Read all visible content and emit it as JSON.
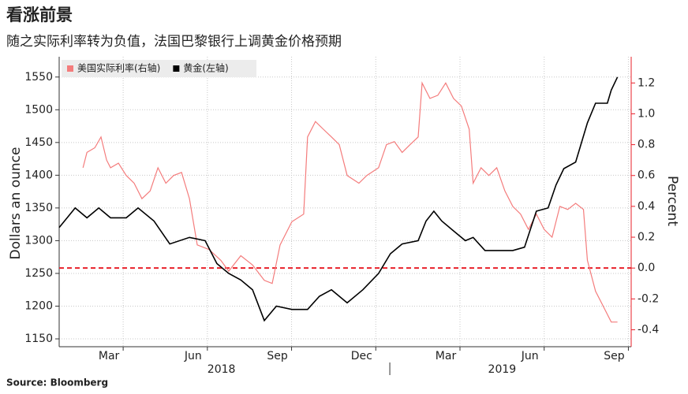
{
  "chart_data": {
    "type": "line",
    "title": "看涨前景",
    "subtitle": "随之实际利率转为负值，法国巴黎银行上调黄金价格预期",
    "source": "Source: Bloomberg",
    "ylabel": "Dollars an ounce",
    "y2label": "Percent",
    "xlim": [
      0.22,
      20.6
    ],
    "xticks": [
      {
        "value": 2.5,
        "label": "Mar"
      },
      {
        "value": 5.5,
        "label": "Jun"
      },
      {
        "value": 8.5,
        "label": "Sep"
      },
      {
        "value": 11.5,
        "label": "Dec"
      },
      {
        "value": 14.5,
        "label": "Mar"
      },
      {
        "value": 17.5,
        "label": "Jun"
      },
      {
        "value": 20.5,
        "label": "Sep"
      }
    ],
    "xgroups": [
      {
        "value": 6,
        "label": "2018"
      },
      {
        "value": 16,
        "label": "2019"
      }
    ],
    "xgroup_separator": 12,
    "ylim": [
      1138,
      1581
    ],
    "yticks": [
      1150,
      1200,
      1250,
      1300,
      1350,
      1400,
      1450,
      1500,
      1550
    ],
    "y2lim": [
      -0.51,
      1.37
    ],
    "y2ticks": [
      -0.4,
      -0.2,
      {
        "value": 0,
        "label": "0.0"
      },
      0.2,
      0.4,
      0.6,
      0.8,
      {
        "value": 1,
        "label": "1.0"
      },
      1.2
    ],
    "grid": true,
    "legend": "top-left",
    "hline": {
      "value": 0,
      "axis": "y2",
      "color": "#e8202a"
    },
    "series": [
      {
        "name": "美国实际利率(右轴)",
        "color": "#f47c7c",
        "axis": "y2",
        "x": [
          1.07,
          1.21,
          1.49,
          1.71,
          1.91,
          2.05,
          2.33,
          2.61,
          2.89,
          3.17,
          3.46,
          3.74,
          4.02,
          4.3,
          4.58,
          4.86,
          5.14,
          5.56,
          5.98,
          6.26,
          6.69,
          7.11,
          7.53,
          7.81,
          8.09,
          8.51,
          8.93,
          9.07,
          9.35,
          9.63,
          9.92,
          10.2,
          10.48,
          10.9,
          11.18,
          11.6,
          11.88,
          12.16,
          12.44,
          12.72,
          13.01,
          13.15,
          13.43,
          13.71,
          13.99,
          14.27,
          14.55,
          14.83,
          14.97,
          15.25,
          15.53,
          15.81,
          16.1,
          16.38,
          16.66,
          16.94,
          17.22,
          17.5,
          17.78,
          18.06,
          18.34,
          18.62,
          18.9,
          19.04,
          19.33,
          19.61,
          19.89,
          20.11
        ],
        "values": [
          0.65,
          0.75,
          0.78,
          0.85,
          0.7,
          0.65,
          0.68,
          0.6,
          0.55,
          0.45,
          0.5,
          0.65,
          0.55,
          0.6,
          0.62,
          0.45,
          0.15,
          0.12,
          0.05,
          -0.02,
          0.08,
          0.02,
          -0.08,
          -0.1,
          0.15,
          0.3,
          0.35,
          0.85,
          0.95,
          0.9,
          0.85,
          0.8,
          0.6,
          0.55,
          0.6,
          0.65,
          0.8,
          0.82,
          0.75,
          0.8,
          0.85,
          1.2,
          1.1,
          1.12,
          1.2,
          1.1,
          1.05,
          0.9,
          0.55,
          0.65,
          0.6,
          0.65,
          0.5,
          0.4,
          0.35,
          0.25,
          0.35,
          0.25,
          0.2,
          0.4,
          0.38,
          0.42,
          0.38,
          0.05,
          -0.15,
          -0.25,
          -0.35,
          -0.35
        ]
      },
      {
        "name": "黄金(左轴)",
        "color": "#000000",
        "x": [
          0.22,
          0.79,
          1.21,
          1.63,
          2.05,
          2.61,
          3.03,
          3.6,
          4.16,
          4.86,
          5.42,
          5.84,
          6.26,
          6.69,
          7.11,
          7.53,
          7.96,
          8.51,
          9.07,
          9.49,
          9.92,
          10.48,
          11.04,
          11.6,
          12.02,
          12.44,
          13.01,
          13.29,
          13.57,
          13.85,
          14.27,
          14.69,
          14.97,
          15.39,
          15.81,
          16.38,
          16.8,
          17.22,
          17.64,
          17.92,
          18.2,
          18.62,
          19.04,
          19.33,
          19.75,
          19.89,
          20.11
        ],
        "values": [
          1320,
          1350,
          1335,
          1350,
          1335,
          1335,
          1350,
          1330,
          1295,
          1305,
          1300,
          1265,
          1250,
          1240,
          1225,
          1178,
          1200,
          1195,
          1195,
          1215,
          1225,
          1205,
          1225,
          1250,
          1280,
          1295,
          1300,
          1330,
          1345,
          1330,
          1315,
          1300,
          1305,
          1285,
          1285,
          1285,
          1290,
          1345,
          1350,
          1385,
          1410,
          1420,
          1480,
          1510,
          1510,
          1530,
          1550
        ]
      }
    ]
  }
}
